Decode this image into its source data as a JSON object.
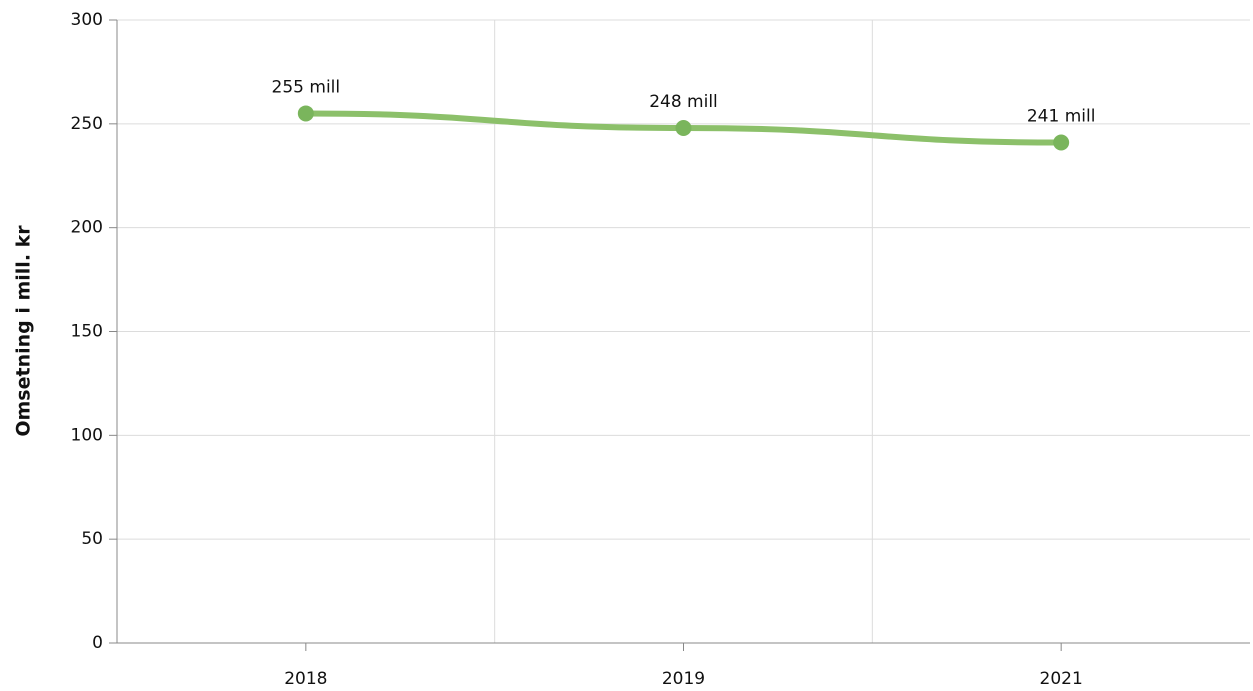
{
  "chart_data": {
    "type": "line",
    "y_axis_label": "Omsetning i mill. kr",
    "categories": [
      "2018",
      "2019",
      "2021"
    ],
    "values": [
      255,
      248,
      241
    ],
    "value_labels": [
      "255 mill",
      "248 mill",
      "241 mill"
    ],
    "color": "#8cc06a",
    "marker_color": "#7ab55c",
    "ylim": [
      0,
      300
    ],
    "yticks": [
      0,
      50,
      100,
      150,
      200,
      250,
      300
    ],
    "grid": true
  }
}
